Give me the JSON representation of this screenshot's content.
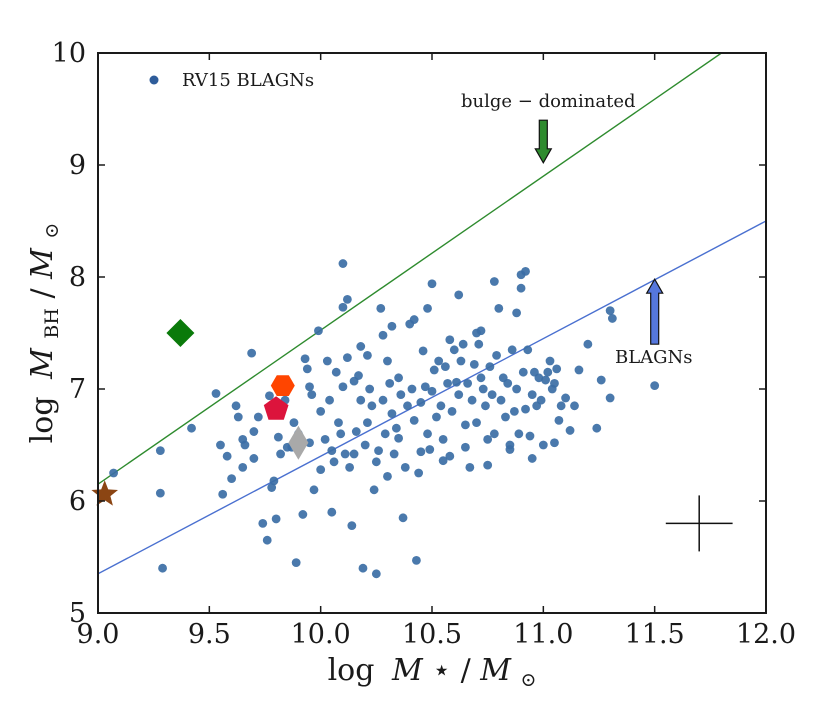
{
  "chart_data": {
    "type": "scatter",
    "xlabel": {
      "prefix": "log",
      "var": "M",
      "star": "⋆",
      "slash": "/",
      "sun_var": "M",
      "sun": "⊙"
    },
    "ylabel": {
      "prefix": "log",
      "var": "M",
      "sub": "BH",
      "slash": "/",
      "sun_var": "M",
      "sun": "⊙"
    },
    "xlim": [
      9.0,
      12.0
    ],
    "ylim": [
      5.0,
      10.0
    ],
    "xticks": [
      9.0,
      9.5,
      10.0,
      10.5,
      11.0,
      11.5,
      12.0
    ],
    "yticks": [
      5,
      6,
      7,
      8,
      9,
      10
    ],
    "xtick_labels": [
      "9.0",
      "9.5",
      "10.0",
      "10.5",
      "11.0",
      "11.5",
      "12.0"
    ],
    "ytick_labels": [
      "5",
      "6",
      "7",
      "8",
      "9",
      "10"
    ],
    "legend": {
      "label": "RV15 BLAGNs",
      "placement": "top-left",
      "color": "#2e5c9a"
    },
    "colors": {
      "points": "#3b6ea5",
      "bulge_line": "#2e8b2e",
      "blagn_line": "#4a70d0",
      "arrow_green": "#2e8b2e",
      "arrow_blue": "#5577dd"
    },
    "lines": [
      {
        "name": "bulge-dominated",
        "x": [
          9.0,
          11.8
        ],
        "y": [
          6.15,
          10.0
        ]
      },
      {
        "name": "BLAGNs",
        "x": [
          9.0,
          12.0
        ],
        "y": [
          5.35,
          8.5
        ]
      }
    ],
    "annotations": [
      {
        "text": "bulge − dominated",
        "x": 10.93,
        "y": 9.55,
        "arrow_from": [
          11.0,
          9.4
        ],
        "arrow_to": [
          11.0,
          9.02
        ]
      },
      {
        "text": "BLAGNs",
        "x": 11.75,
        "y": 7.25,
        "arrow_from": [
          11.5,
          7.4
        ],
        "arrow_to": [
          11.5,
          7.98
        ]
      }
    ],
    "error_cross": {
      "x": 11.7,
      "y": 5.8,
      "xerr": 0.15,
      "yerr": 0.25
    },
    "special_markers": [
      {
        "shape": "diamond",
        "x": 9.37,
        "y": 7.5,
        "color": "#0a7a0a"
      },
      {
        "shape": "hexagon",
        "x": 9.83,
        "y": 7.03,
        "color": "#ff4500"
      },
      {
        "shape": "pentagon",
        "x": 9.8,
        "y": 6.82,
        "color": "#dc143c"
      },
      {
        "shape": "thin-diamond",
        "x": 9.9,
        "y": 6.52,
        "color": "#a9a9a9"
      },
      {
        "shape": "star",
        "x": 9.03,
        "y": 6.06,
        "color": "#8b4513"
      }
    ],
    "series": [
      {
        "name": "RV15 BLAGNs",
        "x": [
          9.07,
          9.28,
          9.28,
          9.29,
          9.42,
          9.53,
          9.55,
          9.56,
          9.58,
          9.6,
          9.62,
          9.63,
          9.65,
          9.65,
          9.66,
          9.69,
          9.7,
          9.72,
          9.74,
          9.76,
          9.77,
          9.79,
          9.8,
          9.81,
          9.82,
          9.84,
          9.85,
          9.87,
          9.88,
          9.89,
          9.89,
          9.9,
          9.93,
          9.94,
          9.95,
          9.96,
          9.97,
          9.99,
          10.0,
          10.02,
          10.03,
          10.04,
          10.05,
          10.05,
          10.06,
          10.07,
          10.08,
          10.09,
          10.1,
          10.1,
          10.11,
          10.12,
          10.13,
          10.14,
          10.15,
          10.16,
          10.17,
          10.18,
          10.19,
          10.2,
          10.21,
          10.21,
          10.22,
          10.23,
          10.24,
          10.25,
          10.26,
          10.27,
          10.28,
          10.29,
          10.3,
          10.3,
          10.31,
          10.32,
          10.33,
          10.34,
          10.35,
          10.36,
          10.37,
          10.38,
          10.39,
          10.4,
          10.41,
          10.42,
          10.43,
          10.44,
          10.45,
          10.46,
          10.47,
          10.48,
          10.49,
          10.5,
          10.51,
          10.52,
          10.53,
          10.54,
          10.55,
          10.56,
          10.57,
          10.58,
          10.59,
          10.6,
          10.61,
          10.62,
          10.63,
          10.64,
          10.65,
          10.66,
          10.67,
          10.68,
          10.69,
          10.7,
          10.7,
          10.71,
          10.72,
          10.73,
          10.74,
          10.75,
          10.76,
          10.77,
          10.78,
          10.79,
          10.8,
          10.81,
          10.82,
          10.83,
          10.84,
          10.85,
          10.86,
          10.87,
          10.88,
          10.89,
          10.9,
          10.91,
          10.92,
          10.93,
          10.94,
          10.95,
          10.96,
          10.97,
          10.98,
          10.99,
          11.0,
          11.01,
          11.02,
          11.03,
          11.04,
          11.05,
          11.06,
          11.07,
          11.08,
          11.1,
          11.12,
          11.14,
          11.16,
          11.2,
          11.24,
          11.26,
          11.3,
          11.3,
          11.31,
          11.5,
          9.7,
          9.85,
          9.95,
          10.0,
          10.15,
          10.25,
          10.35,
          10.45,
          10.55,
          10.65,
          10.75,
          10.85,
          10.95,
          11.05,
          10.12,
          10.28,
          10.42,
          10.58,
          10.72,
          10.88,
          10.18,
          10.32,
          10.48,
          10.62,
          10.78,
          10.92,
          10.1,
          10.5,
          10.9,
          9.78,
          9.92
        ],
        "y": [
          6.25,
          6.45,
          6.07,
          5.4,
          6.65,
          6.96,
          6.5,
          6.06,
          6.4,
          6.2,
          6.85,
          6.75,
          6.55,
          6.3,
          6.5,
          7.32,
          6.62,
          6.75,
          5.8,
          5.65,
          6.94,
          6.18,
          5.84,
          6.57,
          6.42,
          6.9,
          7.05,
          6.48,
          6.7,
          5.45,
          6.55,
          6.6,
          7.27,
          7.18,
          7.02,
          6.95,
          6.1,
          7.52,
          6.8,
          6.55,
          7.25,
          6.9,
          6.45,
          5.9,
          6.35,
          7.15,
          6.7,
          6.6,
          7.73,
          7.02,
          6.42,
          7.8,
          6.3,
          5.78,
          7.07,
          6.62,
          7.12,
          6.9,
          5.4,
          6.5,
          7.3,
          6.7,
          7.0,
          6.85,
          6.1,
          5.35,
          6.45,
          7.72,
          6.9,
          6.6,
          7.25,
          6.22,
          7.05,
          6.78,
          6.42,
          6.65,
          7.1,
          6.95,
          5.85,
          6.3,
          6.85,
          7.58,
          7.0,
          6.72,
          5.47,
          6.25,
          6.88,
          7.34,
          7.02,
          6.6,
          6.46,
          6.98,
          7.17,
          6.75,
          7.25,
          6.85,
          6.55,
          7.2,
          7.05,
          6.4,
          6.8,
          7.35,
          7.06,
          6.95,
          7.25,
          7.4,
          6.68,
          7.05,
          6.3,
          6.9,
          7.22,
          7.5,
          6.7,
          7.4,
          7.1,
          7.0,
          6.85,
          6.55,
          7.2,
          6.95,
          6.6,
          7.3,
          7.72,
          6.9,
          7.1,
          6.75,
          7.05,
          6.5,
          7.35,
          6.8,
          7.0,
          6.6,
          7.9,
          7.15,
          6.82,
          7.35,
          6.58,
          6.95,
          7.15,
          6.85,
          7.1,
          6.9,
          6.5,
          7.08,
          7.15,
          7.25,
          7.0,
          7.05,
          7.18,
          6.72,
          6.85,
          6.92,
          6.63,
          6.85,
          7.17,
          7.4,
          6.65,
          7.08,
          6.92,
          7.7,
          7.63,
          7.03,
          6.38,
          6.48,
          6.52,
          6.28,
          6.42,
          6.35,
          6.56,
          6.44,
          6.36,
          6.48,
          6.32,
          6.46,
          6.38,
          6.52,
          7.28,
          7.48,
          7.62,
          7.44,
          7.52,
          7.68,
          7.38,
          7.56,
          7.72,
          7.84,
          7.96,
          8.05,
          8.12,
          7.94,
          8.02,
          6.12,
          5.88
        ]
      }
    ]
  }
}
